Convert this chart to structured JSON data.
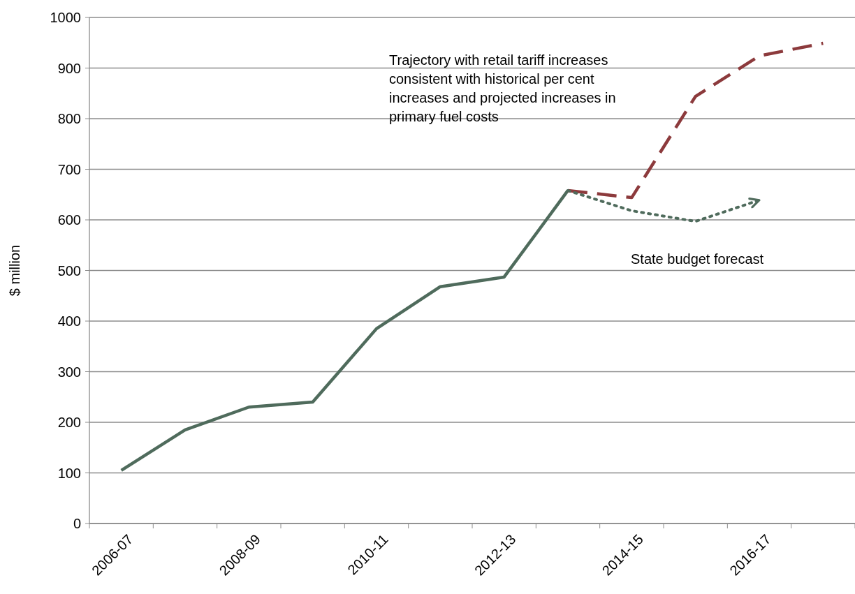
{
  "chart_data": {
    "type": "line",
    "ylabel": "$ million",
    "categories": [
      "2006-07",
      null,
      "2008-09",
      null,
      "2010-11",
      null,
      "2012-13",
      null,
      "2014-15",
      null,
      "2016-17",
      null
    ],
    "series": [
      {
        "color": "#4f6b5c",
        "line_style": "solid",
        "values": [
          105,
          185,
          230,
          240,
          385,
          468,
          487,
          658,
          null,
          null,
          null,
          null
        ]
      },
      {
        "color": "#8c3a3c",
        "line_style": "dashed",
        "values": [
          null,
          null,
          null,
          null,
          null,
          null,
          null,
          658,
          644,
          844,
          924,
          949
        ]
      },
      {
        "color": "#4f6b5c",
        "line_style": "dotted",
        "values": [
          null,
          null,
          null,
          null,
          null,
          null,
          null,
          658,
          618,
          597,
          639,
          null
        ]
      }
    ],
    "ylim": [
      0,
      1000
    ],
    "yticks": [
      0,
      100,
      200,
      300,
      400,
      500,
      600,
      700,
      800,
      900,
      1000
    ],
    "grid": "y",
    "annotations": [
      "Trajectory with retail tariff increases consistent with historical per cent increases and projected increases in primary fuel costs",
      "State budget forecast"
    ]
  }
}
